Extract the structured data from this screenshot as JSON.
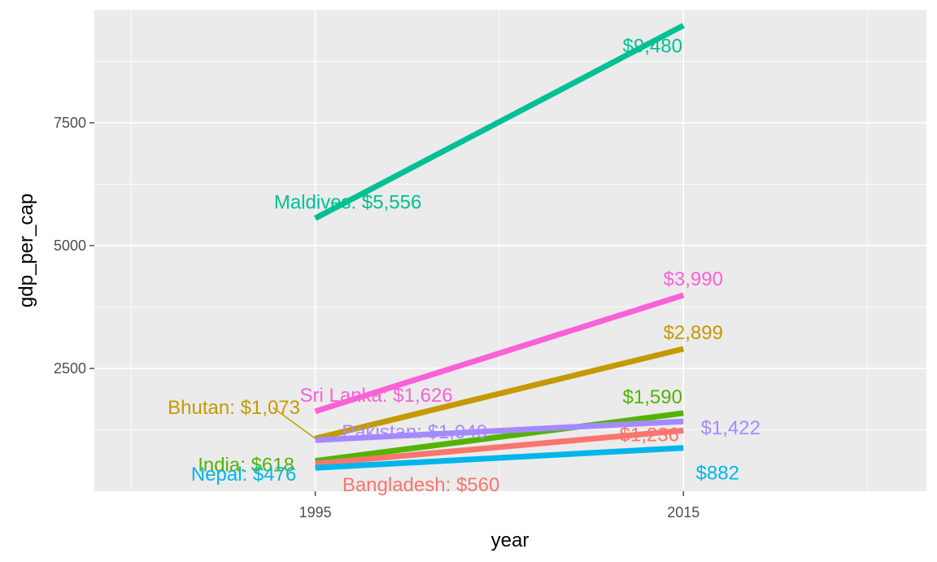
{
  "chart_data": {
    "type": "line",
    "title": "",
    "xlabel": "year",
    "ylabel": "gdp_per_cap",
    "x": [
      1995,
      2015
    ],
    "x_ticks": [
      "1995",
      "2015"
    ],
    "y_ticks": [
      "2500",
      "5000",
      "7500"
    ],
    "xlim": [
      1983,
      2028.2
    ],
    "ylim": [
      0,
      9800
    ],
    "grid": true,
    "legend": "none",
    "series": [
      {
        "name": "Maldives",
        "color": "#00C094",
        "values": [
          5556,
          9480
        ],
        "start_label": "Maldives: $5,556",
        "end_label": "$9,480"
      },
      {
        "name": "Sri Lanka",
        "color": "#FB61D7",
        "values": [
          1626,
          3990
        ],
        "start_label": "Sri Lanka: $1,626",
        "end_label": "$3,990"
      },
      {
        "name": "Bhutan",
        "color": "#C49A00",
        "values": [
          1073,
          2899
        ],
        "start_label": "Bhutan: $1,073",
        "end_label": "$2,899"
      },
      {
        "name": "India",
        "color": "#53B400",
        "values": [
          618,
          1590
        ],
        "start_label": "India: $618",
        "end_label": "$1,590"
      },
      {
        "name": "Pakistan",
        "color": "#A58AFF",
        "values": [
          1040,
          1422
        ],
        "start_label": "Pakistan: $1,040",
        "end_label": "$1,422"
      },
      {
        "name": "Bangladesh",
        "color": "#F8766D",
        "values": [
          560,
          1236
        ],
        "start_label": "Bangladesh: $560",
        "end_label": "$1,236"
      },
      {
        "name": "Nepal",
        "color": "#00B6EB",
        "values": [
          476,
          882
        ],
        "start_label": "Nepal: $476",
        "end_label": "$882"
      }
    ]
  }
}
